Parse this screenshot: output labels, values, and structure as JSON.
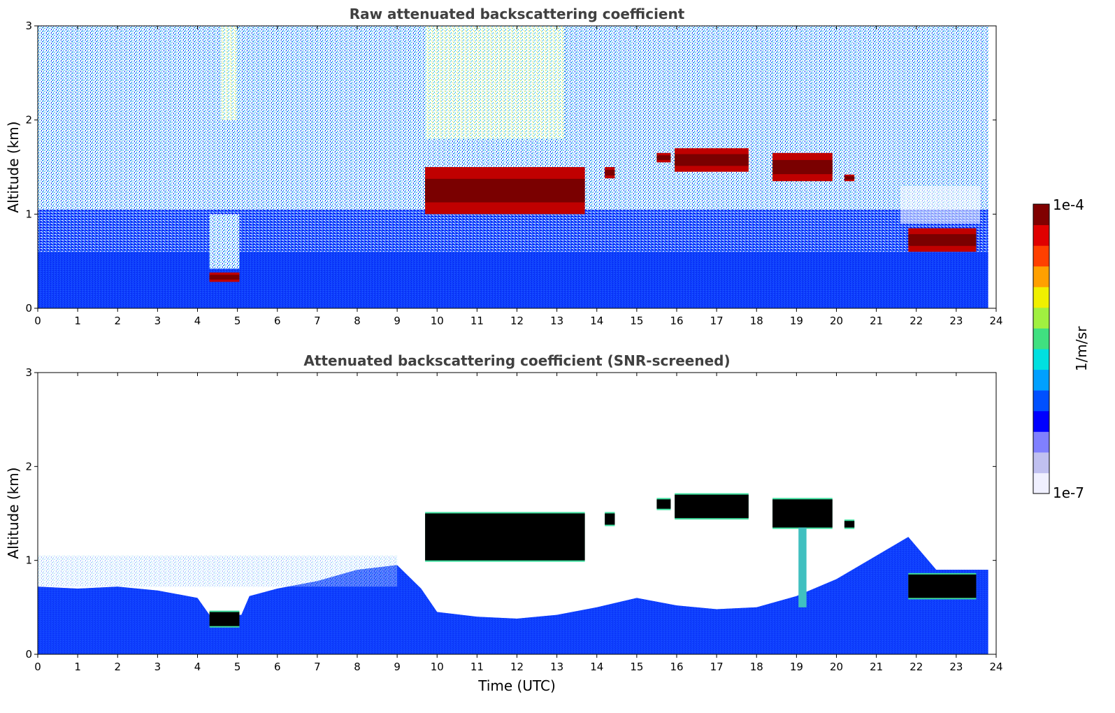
{
  "colorbar": {
    "max_label": "1e-4",
    "min_label": "1e-7",
    "unit_label": "1/m/sr",
    "colors": [
      "#f0f0ff",
      "#c0c0f0",
      "#8080ff",
      "#0000ff",
      "#0050ff",
      "#00a0ff",
      "#00e0e0",
      "#40e080",
      "#a0f040",
      "#f0f000",
      "#ffa000",
      "#ff4000",
      "#e00000",
      "#800000"
    ]
  },
  "chart_data": [
    {
      "type": "heatmap",
      "title": "Raw attenuated backscattering coefficient",
      "xlabel": "",
      "ylabel": "Altitude (km)",
      "xlim": [
        0,
        24
      ],
      "ylim": [
        0,
        3
      ],
      "xticks": [
        "0",
        "1",
        "2",
        "3",
        "4",
        "5",
        "6",
        "7",
        "8",
        "9",
        "10",
        "11",
        "12",
        "13",
        "14",
        "15",
        "16",
        "17",
        "18",
        "19",
        "20",
        "21",
        "22",
        "23",
        "24"
      ],
      "yticks": [
        "0",
        "1",
        "2",
        "3"
      ],
      "data_end_hour": 23.8,
      "background": "noisy blue-cyan backscatter, denser and bluer near surface, greener aloft 9-13 UTC",
      "cloud_layers": [
        {
          "start": 4.3,
          "end": 5.05,
          "base_km": 0.28,
          "top_km": 0.38
        },
        {
          "start": 9.7,
          "end": 13.7,
          "base_km": 1.0,
          "top_km": 1.5
        },
        {
          "start": 14.2,
          "end": 14.45,
          "base_km": 1.38,
          "top_km": 1.5
        },
        {
          "start": 15.5,
          "end": 15.85,
          "base_km": 1.55,
          "top_km": 1.65
        },
        {
          "start": 15.95,
          "end": 17.8,
          "base_km": 1.45,
          "top_km": 1.7
        },
        {
          "start": 18.4,
          "end": 19.9,
          "base_km": 1.35,
          "top_km": 1.65
        },
        {
          "start": 20.2,
          "end": 20.45,
          "base_km": 1.35,
          "top_km": 1.42
        },
        {
          "start": 21.8,
          "end": 23.5,
          "base_km": 0.6,
          "top_km": 0.85
        }
      ]
    },
    {
      "type": "heatmap",
      "title": "Attenuated backscattering coefficient (SNR-screened)",
      "xlabel": "Time (UTC)",
      "ylabel": "Altitude (km)",
      "xlim": [
        0,
        24
      ],
      "ylim": [
        0,
        3
      ],
      "xticks": [
        "0",
        "1",
        "2",
        "3",
        "4",
        "5",
        "6",
        "7",
        "8",
        "9",
        "10",
        "11",
        "12",
        "13",
        "14",
        "15",
        "16",
        "17",
        "18",
        "19",
        "20",
        "21",
        "22",
        "23",
        "24"
      ],
      "yticks": [
        "0",
        "1",
        "2",
        "3"
      ],
      "data_end_hour": 23.8,
      "valid_top_profile_km": [
        [
          0,
          0.72
        ],
        [
          1,
          0.7
        ],
        [
          2,
          0.72
        ],
        [
          3,
          0.68
        ],
        [
          4,
          0.6
        ],
        [
          4.3,
          0.42
        ],
        [
          5.1,
          0.42
        ],
        [
          5.3,
          0.62
        ],
        [
          6,
          0.7
        ],
        [
          7,
          0.78
        ],
        [
          8,
          0.9
        ],
        [
          9,
          0.95
        ],
        [
          9.6,
          0.7
        ],
        [
          10,
          0.45
        ],
        [
          11,
          0.4
        ],
        [
          12,
          0.38
        ],
        [
          13,
          0.42
        ],
        [
          14,
          0.5
        ],
        [
          15,
          0.6
        ],
        [
          16,
          0.52
        ],
        [
          17,
          0.48
        ],
        [
          18,
          0.5
        ],
        [
          19,
          0.62
        ],
        [
          20,
          0.8
        ],
        [
          21,
          1.05
        ],
        [
          21.8,
          1.25
        ],
        [
          22.5,
          0.9
        ],
        [
          23.8,
          0.9
        ]
      ],
      "cloud_layers": [
        {
          "start": 4.3,
          "end": 5.05,
          "base_km": 0.3,
          "top_km": 0.45
        },
        {
          "start": 9.7,
          "end": 13.7,
          "base_km": 1.0,
          "top_km": 1.5
        },
        {
          "start": 14.2,
          "end": 14.45,
          "base_km": 1.38,
          "top_km": 1.5
        },
        {
          "start": 15.5,
          "end": 15.85,
          "base_km": 1.55,
          "top_km": 1.65
        },
        {
          "start": 15.95,
          "end": 17.8,
          "base_km": 1.45,
          "top_km": 1.7
        },
        {
          "start": 18.4,
          "end": 19.9,
          "base_km": 1.35,
          "top_km": 1.65
        },
        {
          "start": 20.2,
          "end": 20.45,
          "base_km": 1.35,
          "top_km": 1.42
        },
        {
          "start": 21.8,
          "end": 23.5,
          "base_km": 0.6,
          "top_km": 0.85
        }
      ]
    }
  ]
}
